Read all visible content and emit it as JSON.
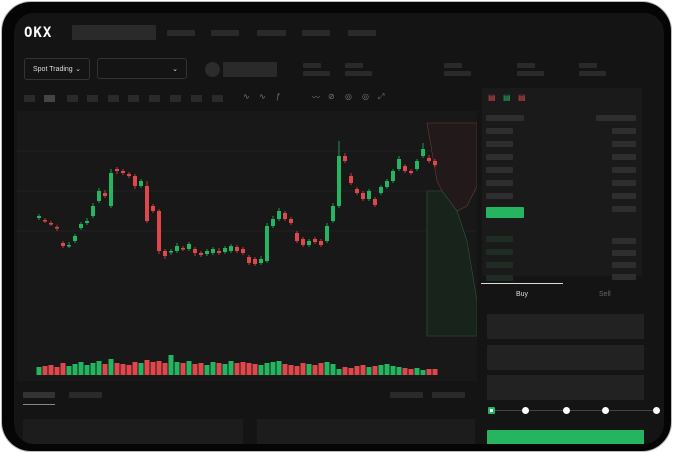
{
  "brand": {
    "logo": "OKX"
  },
  "header": {
    "market_selector": "Spot Trading"
  },
  "order_form": {
    "tabs": [
      "Buy",
      "Sell"
    ],
    "active_tab": "Buy",
    "slider_percent": 0
  },
  "colors": {
    "up": "#25b560",
    "down": "#e0474c",
    "background": "#141414"
  },
  "toolbar_icons": [
    "indicator-icon",
    "indicator-icon",
    "formula-icon",
    "line-icon",
    "draw-icon",
    "camera-icon",
    "settings-icon",
    "fullscreen-icon"
  ],
  "orderbook_icons": [
    "orderbook-both-icon",
    "orderbook-bids-icon",
    "orderbook-asks-icon"
  ],
  "chart_data": {
    "type": "candlestick",
    "candles": [
      [
        93,
        95,
        97,
        91
      ],
      [
        91,
        90,
        93,
        88
      ],
      [
        88,
        87,
        90,
        85
      ],
      [
        84,
        83,
        86,
        80
      ],
      [
        68,
        65,
        70,
        63
      ],
      [
        65,
        66,
        69,
        63
      ],
      [
        70,
        75,
        77,
        68
      ],
      [
        83,
        87,
        89,
        81
      ],
      [
        88,
        90,
        93,
        86
      ],
      [
        95,
        105,
        108,
        93
      ],
      [
        110,
        120,
        123,
        108
      ],
      [
        118,
        115,
        121,
        113
      ],
      [
        105,
        138,
        142,
        103
      ],
      [
        142,
        140,
        144,
        137
      ],
      [
        140,
        138,
        142,
        136
      ],
      [
        137,
        135,
        139,
        133
      ],
      [
        135,
        125,
        137,
        122
      ],
      [
        125,
        130,
        132,
        123
      ],
      [
        125,
        90,
        130,
        88
      ],
      [
        105,
        100,
        107,
        98
      ],
      [
        100,
        60,
        102,
        57
      ],
      [
        60,
        55,
        62,
        52
      ],
      [
        60,
        60,
        62,
        56
      ],
      [
        60,
        65,
        68,
        58
      ],
      [
        63,
        62,
        65,
        60
      ],
      [
        62,
        67,
        69,
        60
      ],
      [
        62,
        58,
        64,
        55
      ],
      [
        58,
        56,
        60,
        54
      ],
      [
        57,
        60,
        62,
        55
      ],
      [
        58,
        62,
        64,
        56
      ],
      [
        60,
        58,
        63,
        56
      ],
      [
        59,
        63,
        65,
        57
      ],
      [
        60,
        65,
        67,
        58
      ],
      [
        64,
        60,
        66,
        58
      ],
      [
        62,
        58,
        64,
        56
      ],
      [
        54,
        48,
        56,
        46
      ],
      [
        52,
        47,
        54,
        45
      ],
      [
        48,
        52,
        55,
        46
      ],
      [
        50,
        85,
        88,
        48
      ],
      [
        85,
        92,
        95,
        83
      ],
      [
        92,
        100,
        103,
        90
      ],
      [
        98,
        92,
        100,
        90
      ],
      [
        92,
        88,
        94,
        86
      ],
      [
        78,
        70,
        80,
        68
      ],
      [
        72,
        66,
        74,
        64
      ],
      [
        66,
        70,
        72,
        64
      ],
      [
        72,
        69,
        74,
        67
      ],
      [
        70,
        66,
        72,
        64
      ],
      [
        70,
        85,
        88,
        68
      ],
      [
        90,
        105,
        108,
        88
      ],
      [
        105,
        155,
        170,
        103
      ],
      [
        155,
        150,
        158,
        148
      ],
      [
        135,
        128,
        138,
        126
      ],
      [
        122,
        118,
        124,
        116
      ],
      [
        118,
        112,
        120,
        110
      ],
      [
        112,
        120,
        122,
        110
      ],
      [
        112,
        106,
        114,
        104
      ],
      [
        118,
        124,
        126,
        116
      ],
      [
        124,
        130,
        132,
        122
      ],
      [
        130,
        140,
        142,
        128
      ],
      [
        142,
        152,
        155,
        140
      ],
      [
        145,
        140,
        147,
        138
      ],
      [
        140,
        138,
        142,
        136
      ],
      [
        142,
        150,
        152,
        140
      ],
      [
        155,
        162,
        168,
        153
      ],
      [
        153,
        150,
        156,
        148
      ],
      [
        150,
        146,
        152,
        144
      ]
    ],
    "volume": [
      8,
      9,
      10,
      8,
      12,
      9,
      11,
      13,
      10,
      12,
      14,
      11,
      16,
      12,
      11,
      10,
      13,
      12,
      15,
      13,
      14,
      12,
      20,
      13,
      12,
      14,
      11,
      12,
      10,
      13,
      12,
      11,
      14,
      12,
      13,
      12,
      11,
      10,
      12,
      13,
      14,
      11,
      10,
      9,
      12,
      11,
      10,
      12,
      13,
      11,
      6,
      8,
      7,
      9,
      10,
      8,
      9,
      10,
      11,
      9,
      8,
      7,
      6,
      7,
      5,
      6,
      6
    ]
  }
}
